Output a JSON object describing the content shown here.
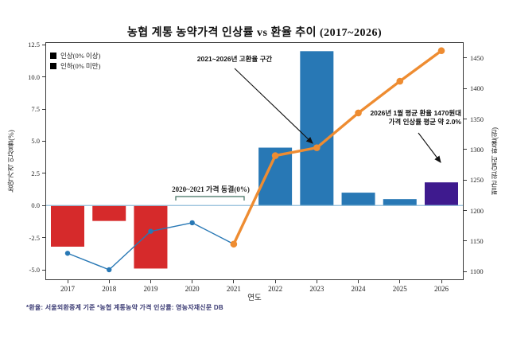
{
  "chart_data": {
    "type": "combo",
    "title": "농협 계통 농약가격 인상률 vs 환율 추이 (2017~2026)",
    "categories": [
      "2017",
      "2018",
      "2019",
      "2020",
      "2021",
      "2022",
      "2023",
      "2024",
      "2025",
      "2026"
    ],
    "series": [
      {
        "name": "농약가격 인상률(%)",
        "type": "bar",
        "axis": "left",
        "values": [
          -3.2,
          -1.2,
          -4.9,
          0,
          0,
          4.5,
          12.0,
          1.0,
          0.5,
          1.8
        ],
        "bar_colors": [
          "#d62a2b",
          "#d62a2b",
          "#d62a2b",
          null,
          null,
          "#2878b5",
          "#2878b5",
          "#2878b5",
          "#2878b5",
          "#3e1a8e"
        ]
      },
      {
        "name": "평균 원/달러 환율(원)",
        "type": "line",
        "axis": "right",
        "values": [
          1130,
          1103,
          1166,
          1180,
          1145,
          1290,
          1303,
          1360,
          1412,
          1462
        ],
        "style_split_index": 4,
        "early": {
          "color": "#2878b5",
          "width": 1.4,
          "marker_r": 3.2
        },
        "late": {
          "color": "#ee8c31",
          "width": 3.4,
          "marker_r": 4.3
        }
      }
    ],
    "axes": {
      "left": {
        "label": "농약가격 인상률(%)",
        "ticks": [
          "12.5",
          "10.0",
          "7.5",
          "5.0",
          "2.5",
          "0.0",
          "-2.5",
          "-5.0"
        ],
        "range": [
          -5.8,
          12.7
        ]
      },
      "right": {
        "label": "평균 원/달러 환율(원)",
        "ticks": [
          "1450",
          "1400",
          "1350",
          "1300",
          "1250",
          "1200",
          "1150",
          "1100"
        ],
        "range": [
          1086,
          1476
        ]
      },
      "x": {
        "label": "연도"
      }
    },
    "legend": {
      "items": [
        {
          "label": "인상(0% 이상)",
          "color": "#000000"
        },
        {
          "label": "인하(0% 미만)",
          "color": "#000000"
        }
      ]
    },
    "annotations": {
      "high_fx": "2021~2026년 고환율 구간",
      "fx2026_line1": "2026년 1월 평균 환율 1470원대",
      "fx2026_line2": "가격 인상률 평균 약 2.0%",
      "freeze": "2020~2021 가격 동결(0%)"
    },
    "footnote": "*환율: 서울외환중계 기준   *농협 계통농약 가격 인상률: 영농자재신문 DB",
    "colors": {
      "bar_down": "#d62a2b",
      "bar_up": "#2878b5",
      "bar_2026": "#3e1a8e",
      "line_early": "#2878b5",
      "line_late": "#ee8c31",
      "zero_line": "#8fbcd9",
      "bracket": "#3f6f5f",
      "footnote": "#3b3b74",
      "frame": "#3a3a3a"
    },
    "grid": false,
    "legend_position": "upper-left-inside"
  }
}
